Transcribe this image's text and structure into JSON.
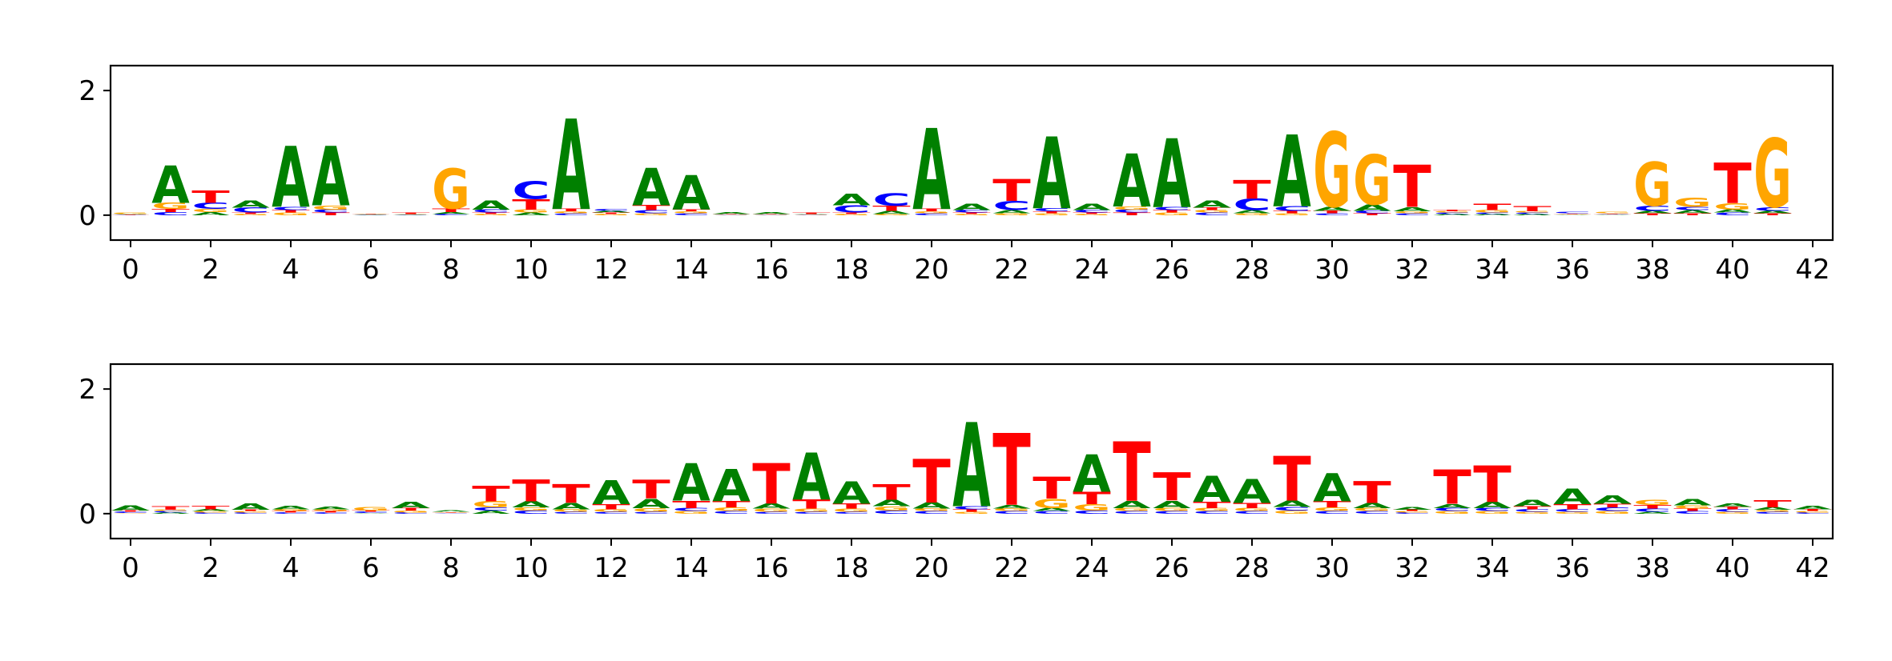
{
  "colors": {
    "A": "#008000",
    "C": "#0000ff",
    "G": "#ffa500",
    "T": "#ff0000"
  },
  "chart_data": [
    {
      "type": "sequence-logo",
      "title": "",
      "xlabel": "",
      "ylabel": "",
      "xlim": [
        -0.5,
        42.5
      ],
      "ylim": [
        -0.4,
        2.4
      ],
      "xticks": [
        "0",
        "2",
        "4",
        "6",
        "8",
        "10",
        "12",
        "14",
        "16",
        "18",
        "20",
        "22",
        "24",
        "26",
        "28",
        "30",
        "32",
        "34",
        "36",
        "38",
        "40",
        "42"
      ],
      "yticks": [
        "0",
        "2"
      ],
      "grid": false,
      "positions": [
        {
          "x": 0,
          "A": 0.01,
          "C": 0.005,
          "G": 0.02,
          "T": 0.005
        },
        {
          "x": 1,
          "A": 0.6,
          "C": 0.05,
          "G": 0.1,
          "T": 0.05
        },
        {
          "x": 2,
          "A": 0.05,
          "C": 0.1,
          "G": 0.05,
          "T": 0.2
        },
        {
          "x": 3,
          "A": 0.12,
          "C": 0.08,
          "G": 0.02,
          "T": 0.02
        },
        {
          "x": 4,
          "A": 0.98,
          "C": 0.05,
          "G": 0.04,
          "T": 0.04
        },
        {
          "x": 5,
          "A": 0.95,
          "C": 0.05,
          "G": 0.07,
          "T": 0.04
        },
        {
          "x": 6,
          "A": 0.005,
          "C": 0.005,
          "G": 0.005,
          "T": 0.005
        },
        {
          "x": 7,
          "A": 0.005,
          "C": 0.005,
          "G": 0.005,
          "T": 0.02
        },
        {
          "x": 8,
          "A": 0.03,
          "C": 0.02,
          "G": 0.64,
          "T": 0.06
        },
        {
          "x": 9,
          "A": 0.15,
          "C": 0.05,
          "G": 0.02,
          "T": 0.02
        },
        {
          "x": 10,
          "A": 0.04,
          "C": 0.28,
          "G": 0.05,
          "T": 0.17
        },
        {
          "x": 11,
          "A": 1.45,
          "C": 0.03,
          "G": 0.03,
          "T": 0.04
        },
        {
          "x": 12,
          "A": 0.03,
          "C": 0.03,
          "G": 0.02,
          "T": 0.02
        },
        {
          "x": 13,
          "A": 0.6,
          "C": 0.05,
          "G": 0.03,
          "T": 0.08
        },
        {
          "x": 14,
          "A": 0.55,
          "C": 0.03,
          "G": 0.03,
          "T": 0.03
        },
        {
          "x": 15,
          "A": 0.03,
          "C": 0.005,
          "G": 0.005,
          "T": 0.005
        },
        {
          "x": 16,
          "A": 0.03,
          "C": 0.005,
          "G": 0.005,
          "T": 0.005
        },
        {
          "x": 17,
          "A": 0.01,
          "C": 0.005,
          "G": 0.005,
          "T": 0.02
        },
        {
          "x": 18,
          "A": 0.18,
          "C": 0.12,
          "G": 0.02,
          "T": 0.02
        },
        {
          "x": 19,
          "A": 0.05,
          "C": 0.2,
          "G": 0.02,
          "T": 0.08
        },
        {
          "x": 20,
          "A": 1.3,
          "C": 0.03,
          "G": 0.03,
          "T": 0.04
        },
        {
          "x": 21,
          "A": 0.1,
          "C": 0.04,
          "G": 0.02,
          "T": 0.02
        },
        {
          "x": 22,
          "A": 0.05,
          "C": 0.15,
          "G": 0.03,
          "T": 0.35
        },
        {
          "x": 23,
          "A": 1.15,
          "C": 0.05,
          "G": 0.03,
          "T": 0.03
        },
        {
          "x": 24,
          "A": 0.1,
          "C": 0.04,
          "G": 0.02,
          "T": 0.02
        },
        {
          "x": 25,
          "A": 0.85,
          "C": 0.05,
          "G": 0.05,
          "T": 0.04
        },
        {
          "x": 26,
          "A": 1.1,
          "C": 0.05,
          "G": 0.04,
          "T": 0.04
        },
        {
          "x": 27,
          "A": 0.12,
          "C": 0.04,
          "G": 0.04,
          "T": 0.04
        },
        {
          "x": 28,
          "A": 0.05,
          "C": 0.18,
          "G": 0.03,
          "T": 0.3
        },
        {
          "x": 29,
          "A": 1.15,
          "C": 0.07,
          "G": 0.03,
          "T": 0.04
        },
        {
          "x": 30,
          "A": 0.07,
          "C": 0.03,
          "G": 1.2,
          "T": 0.04
        },
        {
          "x": 31,
          "A": 0.1,
          "C": 0.04,
          "G": 0.8,
          "T": 0.03
        },
        {
          "x": 32,
          "A": 0.07,
          "C": 0.03,
          "G": 0.03,
          "T": 0.68
        },
        {
          "x": 33,
          "A": 0.02,
          "C": 0.02,
          "G": 0.02,
          "T": 0.02
        },
        {
          "x": 34,
          "A": 0.02,
          "C": 0.02,
          "G": 0.04,
          "T": 0.1
        },
        {
          "x": 35,
          "A": 0.02,
          "C": 0.02,
          "G": 0.02,
          "T": 0.08
        },
        {
          "x": 36,
          "A": 0.01,
          "C": 0.02,
          "G": 0.01,
          "T": 0.01
        },
        {
          "x": 37,
          "A": 0.01,
          "C": 0.01,
          "G": 0.02,
          "T": 0.01
        },
        {
          "x": 38,
          "A": 0.04,
          "C": 0.08,
          "G": 0.7,
          "T": 0.03
        },
        {
          "x": 39,
          "A": 0.05,
          "C": 0.05,
          "G": 0.15,
          "T": 0.03
        },
        {
          "x": 40,
          "A": 0.05,
          "C": 0.04,
          "G": 0.1,
          "T": 0.65
        },
        {
          "x": 41,
          "A": 0.04,
          "C": 0.06,
          "G": 1.1,
          "T": 0.03
        }
      ]
    },
    {
      "type": "sequence-logo",
      "title": "",
      "xlabel": "",
      "ylabel": "",
      "xlim": [
        -0.5,
        42.5
      ],
      "ylim": [
        -0.4,
        2.4
      ],
      "xticks": [
        "0",
        "2",
        "4",
        "6",
        "8",
        "10",
        "12",
        "14",
        "16",
        "18",
        "20",
        "22",
        "24",
        "26",
        "28",
        "30",
        "32",
        "34",
        "36",
        "38",
        "40",
        "42"
      ],
      "yticks": [
        "0",
        "2"
      ],
      "grid": false,
      "positions": [
        {
          "x": 0,
          "A": 0.08,
          "C": 0.02,
          "G": 0.01,
          "T": 0.02
        },
        {
          "x": 1,
          "A": 0.02,
          "C": 0.02,
          "G": 0.02,
          "T": 0.06
        },
        {
          "x": 2,
          "A": 0.03,
          "C": 0.02,
          "G": 0.02,
          "T": 0.06
        },
        {
          "x": 3,
          "A": 0.1,
          "C": 0.02,
          "G": 0.02,
          "T": 0.02
        },
        {
          "x": 4,
          "A": 0.06,
          "C": 0.02,
          "G": 0.03,
          "T": 0.02
        },
        {
          "x": 5,
          "A": 0.04,
          "C": 0.02,
          "G": 0.03,
          "T": 0.02
        },
        {
          "x": 6,
          "A": 0.01,
          "C": 0.02,
          "G": 0.06,
          "T": 0.02
        },
        {
          "x": 7,
          "A": 0.1,
          "C": 0.02,
          "G": 0.03,
          "T": 0.04
        },
        {
          "x": 8,
          "A": 0.02,
          "C": 0.01,
          "G": 0.01,
          "T": 0.01
        },
        {
          "x": 9,
          "A": 0.05,
          "C": 0.05,
          "G": 0.1,
          "T": 0.25
        },
        {
          "x": 10,
          "A": 0.1,
          "C": 0.05,
          "G": 0.05,
          "T": 0.35
        },
        {
          "x": 11,
          "A": 0.1,
          "C": 0.03,
          "G": 0.04,
          "T": 0.3
        },
        {
          "x": 12,
          "A": 0.38,
          "C": 0.03,
          "G": 0.04,
          "T": 0.08
        },
        {
          "x": 13,
          "A": 0.15,
          "C": 0.03,
          "G": 0.06,
          "T": 0.3
        },
        {
          "x": 14,
          "A": 0.6,
          "C": 0.05,
          "G": 0.04,
          "T": 0.12
        },
        {
          "x": 15,
          "A": 0.52,
          "C": 0.04,
          "G": 0.06,
          "T": 0.1
        },
        {
          "x": 16,
          "A": 0.08,
          "C": 0.03,
          "G": 0.05,
          "T": 0.65
        },
        {
          "x": 17,
          "A": 0.75,
          "C": 0.03,
          "G": 0.05,
          "T": 0.15
        },
        {
          "x": 18,
          "A": 0.36,
          "C": 0.03,
          "G": 0.05,
          "T": 0.08
        },
        {
          "x": 19,
          "A": 0.1,
          "C": 0.05,
          "G": 0.07,
          "T": 0.25
        },
        {
          "x": 20,
          "A": 0.1,
          "C": 0.04,
          "G": 0.04,
          "T": 0.7
        },
        {
          "x": 21,
          "A": 1.35,
          "C": 0.05,
          "G": 0.03,
          "T": 0.04
        },
        {
          "x": 22,
          "A": 0.06,
          "C": 0.04,
          "G": 0.04,
          "T": 1.15
        },
        {
          "x": 23,
          "A": 0.05,
          "C": 0.04,
          "G": 0.15,
          "T": 0.35
        },
        {
          "x": 24,
          "A": 0.6,
          "C": 0.05,
          "G": 0.1,
          "T": 0.2
        },
        {
          "x": 25,
          "A": 0.12,
          "C": 0.04,
          "G": 0.05,
          "T": 0.95
        },
        {
          "x": 26,
          "A": 0.12,
          "C": 0.04,
          "G": 0.05,
          "T": 0.45
        },
        {
          "x": 27,
          "A": 0.42,
          "C": 0.04,
          "G": 0.05,
          "T": 0.1
        },
        {
          "x": 28,
          "A": 0.38,
          "C": 0.04,
          "G": 0.05,
          "T": 0.08
        },
        {
          "x": 29,
          "A": 0.1,
          "C": 0.06,
          "G": 0.05,
          "T": 0.72
        },
        {
          "x": 30,
          "A": 0.45,
          "C": 0.04,
          "G": 0.06,
          "T": 0.1
        },
        {
          "x": 31,
          "A": 0.08,
          "C": 0.04,
          "G": 0.05,
          "T": 0.35
        },
        {
          "x": 32,
          "A": 0.04,
          "C": 0.02,
          "G": 0.02,
          "T": 0.02
        },
        {
          "x": 33,
          "A": 0.07,
          "C": 0.05,
          "G": 0.04,
          "T": 0.55
        },
        {
          "x": 34,
          "A": 0.1,
          "C": 0.05,
          "G": 0.04,
          "T": 0.58
        },
        {
          "x": 35,
          "A": 0.1,
          "C": 0.04,
          "G": 0.03,
          "T": 0.05
        },
        {
          "x": 36,
          "A": 0.25,
          "C": 0.04,
          "G": 0.03,
          "T": 0.08
        },
        {
          "x": 37,
          "A": 0.13,
          "C": 0.06,
          "G": 0.04,
          "T": 0.06
        },
        {
          "x": 38,
          "A": 0.03,
          "C": 0.05,
          "G": 0.08,
          "T": 0.06
        },
        {
          "x": 39,
          "A": 0.1,
          "C": 0.04,
          "G": 0.05,
          "T": 0.04
        },
        {
          "x": 40,
          "A": 0.06,
          "C": 0.04,
          "G": 0.03,
          "T": 0.04
        },
        {
          "x": 41,
          "A": 0.04,
          "C": 0.03,
          "G": 0.03,
          "T": 0.12
        },
        {
          "x": 42,
          "A": 0.06,
          "C": 0.02,
          "G": 0.02,
          "T": 0.03
        }
      ]
    }
  ]
}
